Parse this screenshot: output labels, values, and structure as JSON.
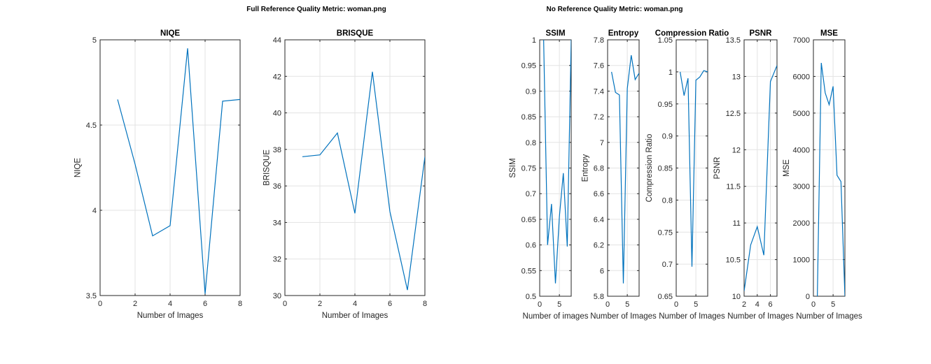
{
  "figure": {
    "full_reference_title": "Full Reference Quality Metric:   woman.png",
    "no_reference_title": "No Reference Quality Metric:  woman.png",
    "line_color": "#0072BD"
  },
  "chart_data": [
    {
      "type": "line",
      "title": "NIQE",
      "xlabel": "Number of Images",
      "ylabel": "NIQE",
      "xlim": [
        0,
        8
      ],
      "ylim": [
        3.5,
        5
      ],
      "xticks": [
        0,
        2,
        4,
        6,
        8
      ],
      "yticks": [
        3.5,
        4,
        4.5,
        5
      ],
      "yticklabels": [
        "3.5",
        "4",
        "4.5",
        "5"
      ],
      "grid": true,
      "x": [
        1,
        2,
        3,
        4,
        5,
        6,
        7,
        8
      ],
      "y": [
        4.65,
        4.27,
        3.85,
        3.91,
        4.95,
        3.51,
        4.64,
        4.65
      ]
    },
    {
      "type": "line",
      "title": "BRISQUE",
      "xlabel": "Number of Images",
      "ylabel": "BRISQUE",
      "xlim": [
        0,
        8
      ],
      "ylim": [
        30,
        44
      ],
      "xticks": [
        0,
        2,
        4,
        6,
        8
      ],
      "yticks": [
        30,
        32,
        34,
        36,
        38,
        40,
        42,
        44
      ],
      "yticklabels": [
        "30",
        "32",
        "34",
        "36",
        "38",
        "40",
        "42",
        "44"
      ],
      "grid": true,
      "x": [
        1,
        2,
        3,
        4,
        5,
        6,
        7,
        8
      ],
      "y": [
        37.6,
        37.7,
        38.9,
        34.5,
        42.25,
        34.6,
        30.3,
        37.6
      ]
    },
    {
      "type": "line",
      "title": "SSIM",
      "xlabel": "Number of images",
      "ylabel": "SSIM",
      "xlim": [
        0,
        8
      ],
      "ylim": [
        0.5,
        1
      ],
      "xticks": [
        0,
        5
      ],
      "yticks": [
        0.5,
        0.55,
        0.6,
        0.65,
        0.7,
        0.75,
        0.8,
        0.85,
        0.9,
        0.95,
        1
      ],
      "yticklabels": [
        "0.5",
        "0.55",
        "0.6",
        "0.65",
        "0.7",
        "0.75",
        "0.8",
        "0.85",
        "0.9",
        "0.95",
        "1"
      ],
      "grid": true,
      "x": [
        1,
        2,
        3,
        4,
        5,
        6,
        7,
        8
      ],
      "y": [
        1.0,
        0.6,
        0.68,
        0.525,
        0.655,
        0.74,
        0.597,
        1.0
      ]
    },
    {
      "type": "line",
      "title": "Entropy",
      "xlabel": "Number of Images",
      "ylabel": "Entropy",
      "xlim": [
        0,
        8
      ],
      "ylim": [
        5.8,
        7.8
      ],
      "xticks": [
        0,
        5
      ],
      "yticks": [
        5.8,
        6,
        6.2,
        6.4,
        6.6,
        6.8,
        7,
        7.2,
        7.4,
        7.6,
        7.8
      ],
      "yticklabels": [
        "5.8",
        "6",
        "6.2",
        "6.4",
        "6.6",
        "6.8",
        "7",
        "7.2",
        "7.4",
        "7.6",
        "7.8"
      ],
      "grid": true,
      "x": [
        1,
        2,
        3,
        4,
        5,
        6,
        7,
        8
      ],
      "y": [
        7.55,
        7.39,
        7.37,
        5.9,
        7.42,
        7.68,
        7.49,
        7.54
      ]
    },
    {
      "type": "line",
      "title": "Compression Ratio",
      "xlabel": "Number of Images",
      "ylabel": "Compression Ratio",
      "xlim": [
        0,
        8
      ],
      "ylim": [
        0.65,
        1.05
      ],
      "xticks": [
        0,
        5
      ],
      "yticks": [
        0.65,
        0.7,
        0.75,
        0.8,
        0.85,
        0.9,
        0.95,
        1,
        1.05
      ],
      "yticklabels": [
        "0.65",
        "0.7",
        "0.75",
        "0.8",
        "0.85",
        "0.9",
        "0.95",
        "1",
        "1.05"
      ],
      "grid": true,
      "x": [
        1,
        2,
        3,
        4,
        5,
        6,
        7,
        8
      ],
      "y": [
        1.0,
        0.963,
        0.99,
        0.696,
        0.987,
        0.992,
        1.002,
        1.0
      ]
    },
    {
      "type": "line",
      "title": "PSNR",
      "xlabel": "Number of Images",
      "ylabel": "PSNR",
      "xlim": [
        2,
        7
      ],
      "ylim": [
        10,
        13.5
      ],
      "xticks": [
        2,
        4,
        6
      ],
      "yticks": [
        10,
        10.5,
        11,
        11.5,
        12,
        12.5,
        13,
        13.5
      ],
      "yticklabels": [
        "10",
        "10.5",
        "11",
        "11.5",
        "12",
        "12.5",
        "13",
        "13.5"
      ],
      "grid": true,
      "x": [
        2,
        3,
        4,
        5,
        6,
        7
      ],
      "y": [
        10.07,
        10.7,
        10.95,
        10.56,
        12.93,
        13.15
      ]
    },
    {
      "type": "line",
      "title": "MSE",
      "xlabel": "Number of Images",
      "ylabel": "MSE",
      "xlim": [
        0,
        8
      ],
      "ylim": [
        0,
        7000
      ],
      "xticks": [
        0,
        5
      ],
      "yticks": [
        0,
        1000,
        2000,
        3000,
        4000,
        5000,
        6000,
        7000
      ],
      "yticklabels": [
        "0",
        "1000",
        "2000",
        "3000",
        "4000",
        "5000",
        "6000",
        "7000"
      ],
      "grid": true,
      "x": [
        1,
        2,
        3,
        4,
        5,
        6,
        7,
        8
      ],
      "y": [
        0,
        6370,
        5550,
        5230,
        5730,
        3300,
        3130,
        0
      ]
    }
  ]
}
